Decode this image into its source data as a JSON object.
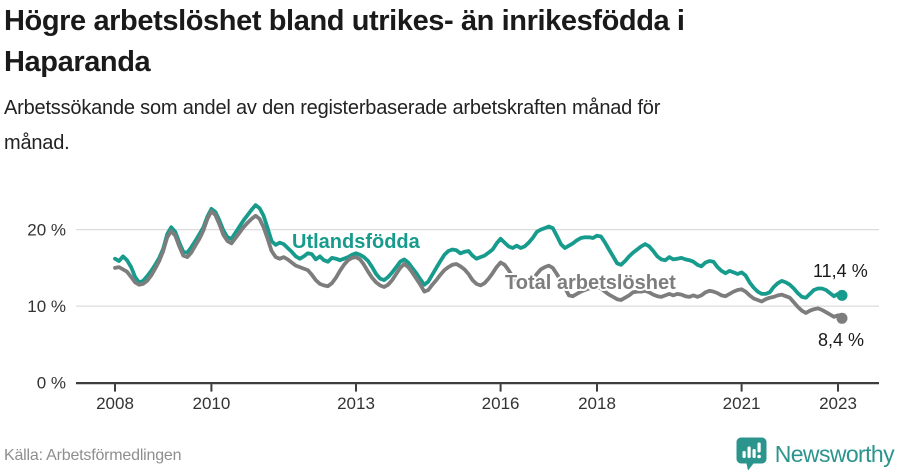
{
  "header": {
    "title_line1": "Högre arbetslöshet bland utrikes- än inrikesfödda i",
    "title_line2": "Haparanda",
    "subtitle_line1": "Arbetssökande som andel av den registerbaserade arbetskraften månad för",
    "subtitle_line2": "månad."
  },
  "footer": {
    "source": "Källa: Arbetsförmedlingen",
    "logo_text": "Newsworthy"
  },
  "colors": {
    "foreign_born_line": "#169b8c",
    "total_line": "#7d7d7d",
    "logo_teal": "#2b948c",
    "axis_text": "#333333",
    "gridline": "#dcdcdc",
    "axis_line": "#3d3d3d",
    "value_label_text": "#1a1a1a"
  },
  "chart_data": {
    "type": "line",
    "title": "Högre arbetslöshet bland utrikes- än inrikesfödda i Haparanda",
    "subtitle": "Arbetssökande som andel av den registerbaserade arbetskraften månad för månad.",
    "xlabel": "",
    "ylabel": "",
    "grid": "horizontal",
    "legend_position": "inline-labels",
    "xlim": [
      2007.2,
      2023.85
    ],
    "ylim": [
      0,
      24.5
    ],
    "x_ticks": [
      2008,
      2010,
      2013,
      2016,
      2018,
      2021,
      2023
    ],
    "x_tick_labels": [
      "2008",
      "2010",
      "2013",
      "2016",
      "2018",
      "2021",
      "2023"
    ],
    "y_ticks": [
      0,
      10,
      20
    ],
    "y_tick_labels": [
      "0 %",
      "10 %",
      "20 %"
    ],
    "x_start_year": 2008.0,
    "x_step_years": 0.08333,
    "frequency": "monthly",
    "series": [
      {
        "name": "Utlandsfödda",
        "color": "#169b8c",
        "end_label": "11,4 %",
        "end_value": 11.4,
        "values": [
          16.2,
          15.9,
          16.5,
          16.0,
          15.1,
          13.8,
          13.1,
          13.3,
          13.9,
          14.6,
          15.4,
          16.3,
          17.5,
          19.4,
          20.3,
          19.7,
          18.3,
          17.1,
          17.0,
          17.7,
          18.5,
          19.4,
          20.3,
          21.7,
          22.7,
          22.3,
          21.2,
          19.9,
          19.0,
          18.8,
          19.6,
          20.4,
          21.2,
          21.9,
          22.6,
          23.2,
          22.8,
          21.8,
          20.2,
          18.5,
          18.0,
          18.3,
          18.1,
          17.6,
          17.1,
          16.5,
          16.2,
          16.5,
          16.9,
          16.8,
          16.1,
          16.5,
          16.0,
          15.8,
          16.3,
          16.2,
          16.0,
          16.2,
          16.4,
          16.7,
          16.9,
          16.7,
          16.4,
          15.9,
          15.1,
          14.2,
          13.6,
          13.4,
          13.8,
          14.4,
          15.1,
          15.8,
          16.1,
          15.7,
          15.0,
          14.3,
          13.5,
          12.8,
          13.2,
          14.1,
          15.0,
          15.9,
          16.7,
          17.2,
          17.4,
          17.3,
          16.9,
          17.1,
          17.2,
          16.6,
          16.2,
          16.4,
          16.6,
          17.0,
          17.4,
          18.2,
          18.8,
          18.3,
          17.8,
          17.6,
          17.9,
          17.6,
          17.8,
          18.3,
          18.9,
          19.7,
          20.0,
          20.2,
          20.4,
          20.2,
          19.2,
          18.1,
          17.6,
          17.9,
          18.2,
          18.6,
          18.9,
          19.0,
          19.0,
          18.9,
          19.2,
          19.1,
          18.3,
          17.4,
          16.5,
          15.6,
          15.4,
          15.9,
          16.5,
          17.0,
          17.4,
          17.8,
          18.1,
          17.8,
          17.2,
          16.5,
          16.1,
          16.0,
          16.4,
          16.1,
          16.2,
          16.3,
          16.1,
          16.0,
          15.8,
          15.4,
          15.2,
          15.7,
          15.9,
          15.8,
          15.1,
          14.6,
          14.3,
          14.6,
          14.4,
          14.2,
          14.4,
          14.0,
          13.1,
          12.4,
          11.9,
          11.6,
          11.6,
          11.8,
          12.5,
          13.0,
          13.3,
          13.1,
          12.8,
          12.3,
          11.7,
          11.2,
          11.1,
          11.6,
          12.1,
          12.3,
          12.3,
          12.1,
          11.7,
          11.3,
          11.6,
          11.4
        ]
      },
      {
        "name": "Total arbetslöshet",
        "color": "#7d7d7d",
        "end_label": "8,4 %",
        "end_value": 8.4,
        "values": [
          15.0,
          15.1,
          14.8,
          14.5,
          13.8,
          13.1,
          12.8,
          12.9,
          13.3,
          14.0,
          14.9,
          15.9,
          17.2,
          19.0,
          19.8,
          19.2,
          17.8,
          16.6,
          16.4,
          17.0,
          17.9,
          18.8,
          19.9,
          21.4,
          22.4,
          21.9,
          20.7,
          19.3,
          18.5,
          18.2,
          18.9,
          19.6,
          20.3,
          20.9,
          21.4,
          21.8,
          21.4,
          20.3,
          18.8,
          17.2,
          16.4,
          16.2,
          16.4,
          16.1,
          15.7,
          15.3,
          15.1,
          14.9,
          14.7,
          14.1,
          13.4,
          12.9,
          12.7,
          12.6,
          13.0,
          13.7,
          14.6,
          15.4,
          16.0,
          16.3,
          16.4,
          16.1,
          15.4,
          14.5,
          13.7,
          13.1,
          12.7,
          12.5,
          12.8,
          13.4,
          14.2,
          15.0,
          15.5,
          15.1,
          14.4,
          13.6,
          12.8,
          11.9,
          12.1,
          12.8,
          13.4,
          14.1,
          14.7,
          15.1,
          15.4,
          15.5,
          15.2,
          14.8,
          14.2,
          13.4,
          12.9,
          12.7,
          13.0,
          13.6,
          14.3,
          15.1,
          15.7,
          15.4,
          14.7,
          13.8,
          13.1,
          12.6,
          12.4,
          12.8,
          13.5,
          14.2,
          14.8,
          15.1,
          15.3,
          15.0,
          14.2,
          13.3,
          12.4,
          11.4,
          11.3,
          11.6,
          11.9,
          12.1,
          12.3,
          12.4,
          12.5,
          12.3,
          11.9,
          11.5,
          11.2,
          10.9,
          10.8,
          11.1,
          11.4,
          11.8,
          11.9,
          11.9,
          12.0,
          11.8,
          11.5,
          11.3,
          11.2,
          11.4,
          11.6,
          11.4,
          11.6,
          11.5,
          11.3,
          11.2,
          11.4,
          11.2,
          11.4,
          11.8,
          12.0,
          11.9,
          11.7,
          11.4,
          11.3,
          11.6,
          11.9,
          12.1,
          12.2,
          11.9,
          11.4,
          11.0,
          10.8,
          10.6,
          10.9,
          11.1,
          11.2,
          11.4,
          11.5,
          11.3,
          11.1,
          10.5,
          9.9,
          9.4,
          9.1,
          9.4,
          9.6,
          9.7,
          9.5,
          9.2,
          8.9,
          8.6,
          8.8,
          8.4
        ]
      }
    ]
  }
}
